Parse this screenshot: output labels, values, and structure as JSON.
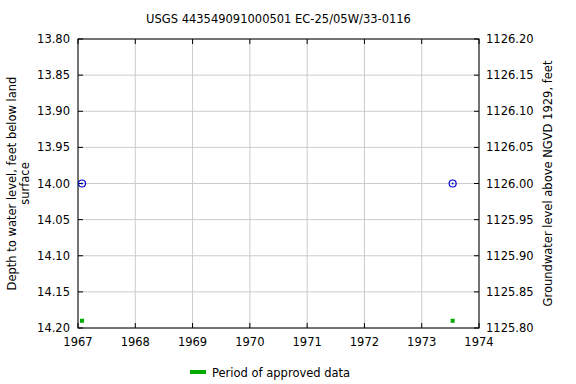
{
  "chart_data": {
    "type": "scatter",
    "title": "USGS 443549091000501 EC-25/05W/33-0116",
    "y_label": [
      "Depth to water level, feet below land",
      "surface"
    ],
    "y2_label": "Groundwater level above NGVD 1929, feet",
    "x": [
      1967.07,
      1973.54
    ],
    "series": [
      {
        "values": [
          14.0,
          14.0
        ],
        "color": "#0000cc",
        "marker": "circle"
      },
      {
        "name": "Period of approved data",
        "values": [
          14.19,
          14.19
        ],
        "color": "#00aa00",
        "marker": "square"
      }
    ],
    "xlim": [
      1967,
      1974
    ],
    "xticks": [
      1967,
      1968,
      1969,
      1970,
      1971,
      1972,
      1973,
      1974
    ],
    "ylim": [
      14.2,
      13.8
    ],
    "yticks": [
      {
        "value": 13.8,
        "label": "13.80"
      },
      {
        "value": 13.85,
        "label": "13.85"
      },
      {
        "value": 13.9,
        "label": "13.90"
      },
      {
        "value": 13.95,
        "label": "13.95"
      },
      {
        "value": 14.0,
        "label": "14.00"
      },
      {
        "value": 14.05,
        "label": "14.05"
      },
      {
        "value": 14.1,
        "label": "14.10"
      },
      {
        "value": 14.15,
        "label": "14.15"
      },
      {
        "value": 14.2,
        "label": "14.20"
      }
    ],
    "y2lim": [
      1125.8,
      1126.2
    ],
    "y2ticks": [
      {
        "value": 1126.2,
        "label": "1126.20"
      },
      {
        "value": 1126.15,
        "label": "1126.15"
      },
      {
        "value": 1126.1,
        "label": "1126.10"
      },
      {
        "value": 1126.05,
        "label": "1126.05"
      },
      {
        "value": 1126.0,
        "label": "1126.00"
      },
      {
        "value": 1125.95,
        "label": "1125.95"
      },
      {
        "value": 1125.9,
        "label": "1125.90"
      },
      {
        "value": 1125.85,
        "label": "1125.85"
      },
      {
        "value": 1125.8,
        "label": "1125.80"
      }
    ],
    "grid": true,
    "legend": "bottom"
  }
}
